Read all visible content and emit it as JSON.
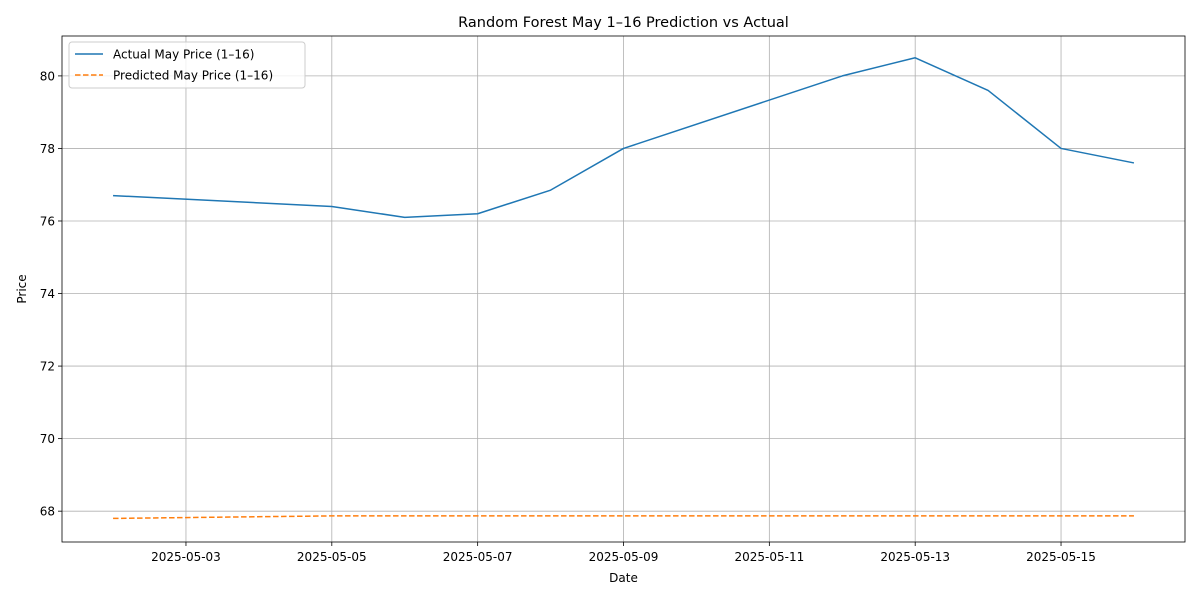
{
  "chart_data": {
    "type": "line",
    "title": "Random Forest May 1–16 Prediction vs Actual",
    "xlabel": "Date",
    "ylabel": "Price",
    "x": [
      "2025-05-02",
      "2025-05-05",
      "2025-05-06",
      "2025-05-07",
      "2025-05-08",
      "2025-05-09",
      "2025-05-12",
      "2025-05-13",
      "2025-05-14",
      "2025-05-15",
      "2025-05-16"
    ],
    "series": [
      {
        "name": "Actual May Price (1–16)",
        "color": "#1f77b4",
        "style": "solid",
        "values": [
          76.7,
          76.4,
          76.1,
          76.2,
          76.85,
          78.0,
          80.0,
          80.5,
          79.6,
          78.0,
          77.6
        ]
      },
      {
        "name": "Predicted May Price (1–16)",
        "color": "#ff7f0e",
        "style": "dashed",
        "values": [
          67.8,
          67.87,
          67.87,
          67.87,
          67.87,
          67.87,
          67.87,
          67.87,
          67.87,
          67.87,
          67.87
        ]
      }
    ],
    "xlim": [
      "2025-05-01T07:12",
      "2025-05-16T16:48"
    ],
    "ylim": [
      67.15,
      81.1
    ],
    "xticks": [
      "2025-05-03",
      "2025-05-05",
      "2025-05-07",
      "2025-05-09",
      "2025-05-11",
      "2025-05-13",
      "2025-05-15"
    ],
    "yticks": [
      68,
      70,
      72,
      74,
      76,
      78,
      80
    ],
    "grid": true,
    "legend_position": "top-left"
  }
}
